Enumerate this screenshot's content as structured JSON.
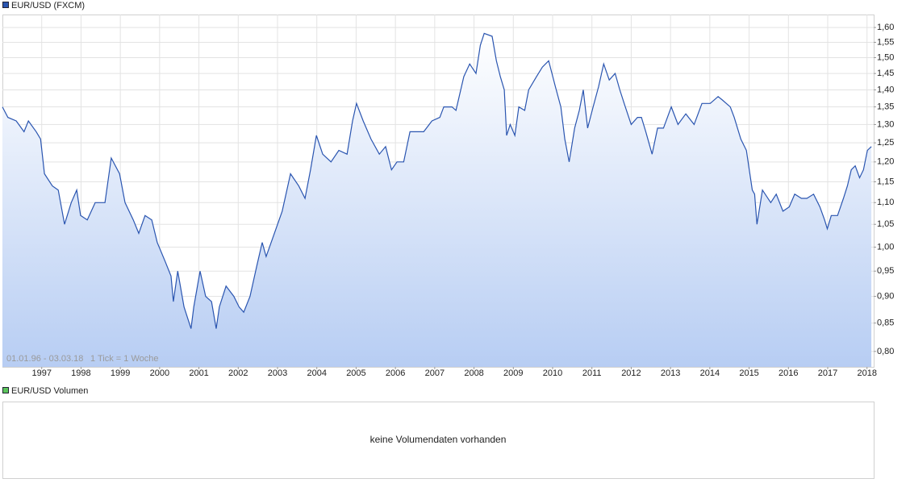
{
  "chart_data": [
    {
      "type": "line",
      "annotations": [
        "01.01.96 - 03.03.18",
        "1 Tick = 1 Woche"
      ],
      "x": [
        1996.0,
        1996.14,
        1996.35,
        1996.55,
        1996.66,
        1996.86,
        1996.97,
        1997.07,
        1997.27,
        1997.42,
        1997.58,
        1997.75,
        1997.89,
        1997.99,
        1998.16,
        1998.36,
        1998.61,
        1998.77,
        1998.98,
        1999.12,
        1999.33,
        1999.47,
        1999.63,
        1999.8,
        1999.94,
        2000.14,
        2000.29,
        2000.35,
        2000.46,
        2000.62,
        2000.8,
        2000.87,
        2001.03,
        2001.17,
        2001.32,
        2001.44,
        2001.52,
        2001.69,
        2001.89,
        2002.02,
        2002.14,
        2002.3,
        2002.47,
        2002.61,
        2002.71,
        2002.92,
        2003.12,
        2003.33,
        2003.54,
        2003.7,
        2003.84,
        2003.99,
        2004.15,
        2004.36,
        2004.56,
        2004.77,
        2004.91,
        2005.01,
        2005.18,
        2005.38,
        2005.59,
        2005.75,
        2005.9,
        2006.04,
        2006.21,
        2006.37,
        2006.51,
        2006.72,
        2006.93,
        2007.13,
        2007.23,
        2007.44,
        2007.54,
        2007.74,
        2007.89,
        2008.05,
        2008.16,
        2008.26,
        2008.46,
        2008.57,
        2008.67,
        2008.77,
        2008.83,
        2008.92,
        2009.04,
        2009.14,
        2009.29,
        2009.39,
        2009.59,
        2009.74,
        2009.9,
        2010.07,
        2010.21,
        2010.31,
        2010.42,
        2010.56,
        2010.68,
        2010.78,
        2010.89,
        2011.03,
        2011.17,
        2011.3,
        2011.44,
        2011.59,
        2011.71,
        2011.85,
        2012.0,
        2012.16,
        2012.26,
        2012.37,
        2012.53,
        2012.67,
        2012.82,
        2013.02,
        2013.19,
        2013.39,
        2013.6,
        2013.8,
        2014.01,
        2014.21,
        2014.32,
        2014.52,
        2014.62,
        2014.79,
        2014.93,
        2015.08,
        2015.14,
        2015.2,
        2015.34,
        2015.55,
        2015.69,
        2015.86,
        2016.02,
        2016.16,
        2016.33,
        2016.47,
        2016.64,
        2016.8,
        2016.92,
        2016.99,
        2017.09,
        2017.25,
        2017.4,
        2017.5,
        2017.6,
        2017.7,
        2017.81,
        2017.91,
        2018.01,
        2018.11
      ],
      "series": [
        {
          "name": "EUR/USD (FXCM)",
          "color": "#2a55b0",
          "values": [
            1.35,
            1.32,
            1.31,
            1.28,
            1.31,
            1.28,
            1.26,
            1.17,
            1.14,
            1.13,
            1.05,
            1.1,
            1.13,
            1.07,
            1.06,
            1.1,
            1.1,
            1.21,
            1.17,
            1.1,
            1.06,
            1.03,
            1.07,
            1.06,
            1.01,
            0.97,
            0.94,
            0.89,
            0.95,
            0.88,
            0.84,
            0.88,
            0.95,
            0.9,
            0.89,
            0.84,
            0.88,
            0.92,
            0.9,
            0.88,
            0.87,
            0.9,
            0.96,
            1.01,
            0.98,
            1.03,
            1.08,
            1.17,
            1.14,
            1.11,
            1.18,
            1.27,
            1.22,
            1.2,
            1.23,
            1.22,
            1.31,
            1.36,
            1.31,
            1.26,
            1.22,
            1.24,
            1.18,
            1.2,
            1.2,
            1.28,
            1.28,
            1.28,
            1.31,
            1.32,
            1.35,
            1.35,
            1.34,
            1.44,
            1.48,
            1.45,
            1.54,
            1.58,
            1.57,
            1.49,
            1.44,
            1.4,
            1.27,
            1.3,
            1.27,
            1.35,
            1.34,
            1.4,
            1.44,
            1.47,
            1.49,
            1.41,
            1.35,
            1.26,
            1.2,
            1.29,
            1.34,
            1.4,
            1.29,
            1.35,
            1.41,
            1.48,
            1.43,
            1.45,
            1.4,
            1.35,
            1.3,
            1.32,
            1.32,
            1.28,
            1.22,
            1.29,
            1.29,
            1.35,
            1.3,
            1.33,
            1.3,
            1.36,
            1.36,
            1.38,
            1.37,
            1.35,
            1.32,
            1.26,
            1.23,
            1.13,
            1.12,
            1.05,
            1.13,
            1.1,
            1.12,
            1.08,
            1.09,
            1.12,
            1.11,
            1.11,
            1.12,
            1.09,
            1.06,
            1.04,
            1.07,
            1.07,
            1.11,
            1.14,
            1.18,
            1.19,
            1.16,
            1.18,
            1.23,
            1.24
          ]
        }
      ],
      "xlim": [
        1996,
        2018.17
      ],
      "xticks": [
        1997,
        1998,
        1999,
        2000,
        2001,
        2002,
        2003,
        2004,
        2005,
        2006,
        2007,
        2008,
        2009,
        2010,
        2011,
        2012,
        2013,
        2014,
        2015,
        2016,
        2017,
        2018
      ],
      "ylim": [
        0.774,
        1.645
      ],
      "yticks": [
        {
          "value": 0.8,
          "label": "0,80"
        },
        {
          "value": 0.85,
          "label": "0,85"
        },
        {
          "value": 0.9,
          "label": "0,90"
        },
        {
          "value": 0.95,
          "label": "0,95"
        },
        {
          "value": 1.0,
          "label": "1,00"
        },
        {
          "value": 1.05,
          "label": "1,05"
        },
        {
          "value": 1.1,
          "label": "1,10"
        },
        {
          "value": 1.15,
          "label": "1,15"
        },
        {
          "value": 1.2,
          "label": "1,20"
        },
        {
          "value": 1.25,
          "label": "1,25"
        },
        {
          "value": 1.3,
          "label": "1,30"
        },
        {
          "value": 1.35,
          "label": "1,35"
        },
        {
          "value": 1.4,
          "label": "1,40"
        },
        {
          "value": 1.45,
          "label": "1,45"
        },
        {
          "value": 1.5,
          "label": "1,50"
        },
        {
          "value": 1.55,
          "label": "1,55"
        },
        {
          "value": 1.6,
          "label": "1,60"
        }
      ],
      "log": true,
      "grid": true
    },
    {
      "type": "bar",
      "legend": "EUR/USD Volumen",
      "legend_color": "#5cc55c",
      "message": "keine Volumendaten vorhanden"
    }
  ]
}
